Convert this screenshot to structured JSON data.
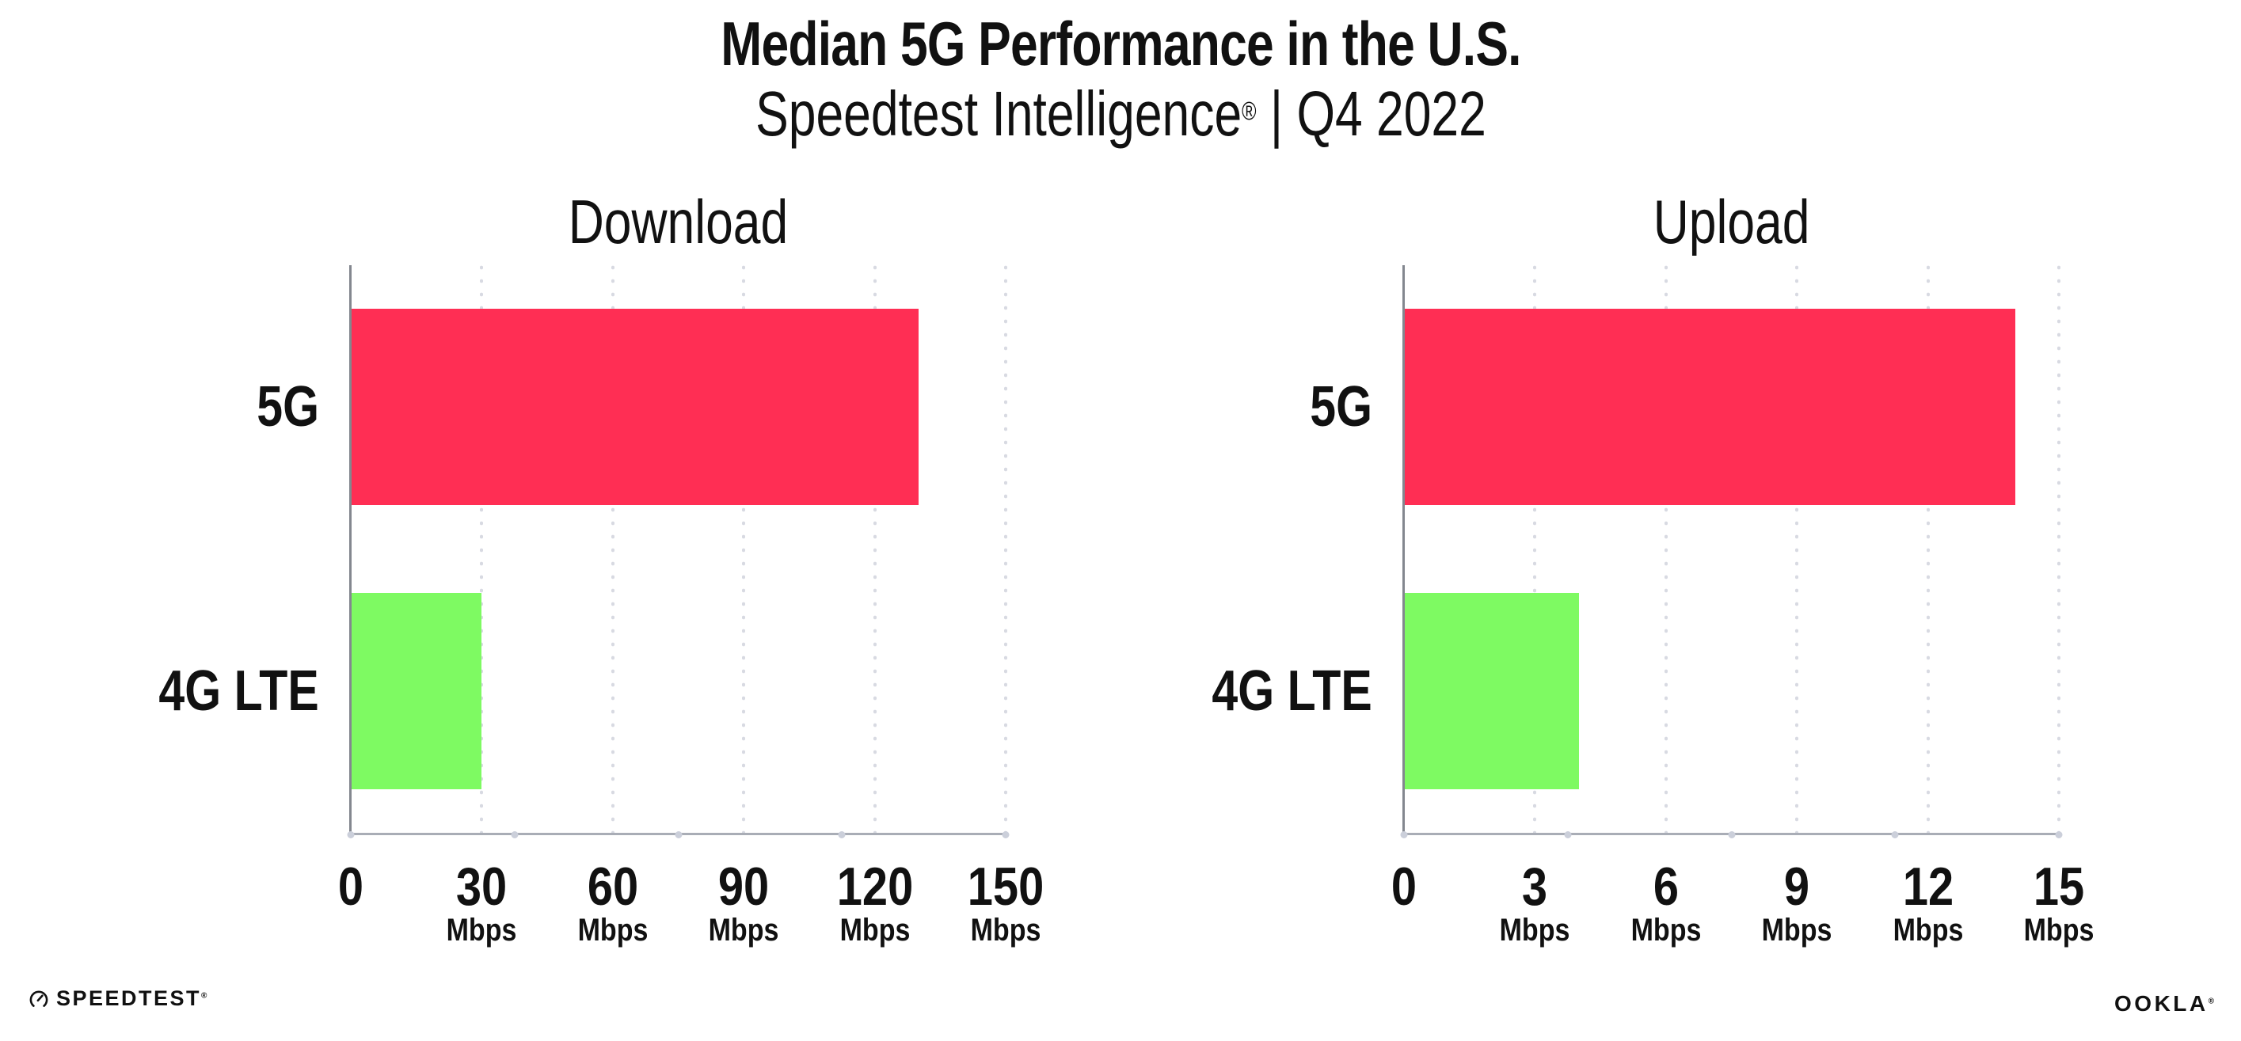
{
  "header": {
    "title": "Median 5G Performance in the U.S.",
    "subtitle": {
      "brand": "Speedtest Intelligence",
      "mark": "®",
      "rest": " | Q4 2022"
    }
  },
  "chart_data": [
    {
      "type": "bar",
      "orientation": "horizontal",
      "title": "Download",
      "categories": [
        "5G",
        "4G LTE"
      ],
      "values": [
        130,
        30
      ],
      "unit": "Mbps",
      "xlim": [
        0,
        150
      ],
      "xticks": [
        0,
        30,
        60,
        90,
        120,
        150
      ],
      "bar_colors": [
        "#FF2E54",
        "#7EFA62"
      ],
      "grid": "vertical-dotted",
      "legend": "none"
    },
    {
      "type": "bar",
      "orientation": "horizontal",
      "title": "Upload",
      "categories": [
        "5G",
        "4G LTE"
      ],
      "values": [
        14,
        4
      ],
      "unit": "Mbps",
      "xlim": [
        0,
        15
      ],
      "xticks": [
        0,
        3,
        6,
        9,
        12,
        15
      ],
      "bar_colors": [
        "#FF2E54",
        "#7EFA62"
      ],
      "grid": "vertical-dotted",
      "legend": "none"
    }
  ],
  "colors": {
    "bar_5g": "#FF2E54",
    "bar_4g_lte": "#7EFA62",
    "axis_line": "#A9ADB6",
    "axis_spine": "#83878F",
    "gridline": "#D8DAE2",
    "text": "#111111",
    "background": "#FFFFFF"
  },
  "footer": {
    "speedtest": {
      "icon": "speedtest-gauge-icon",
      "label": "SPEEDTEST",
      "mark": "®"
    },
    "ookla": {
      "label": "OOKLA",
      "mark": "®"
    }
  }
}
